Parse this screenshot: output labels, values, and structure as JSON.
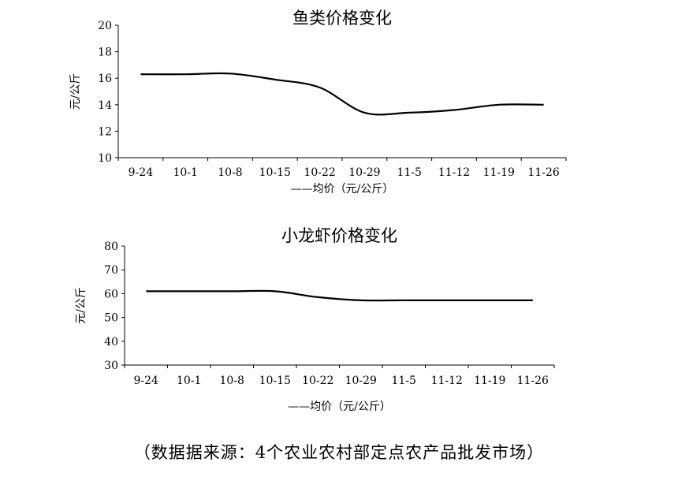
{
  "chart_data": [
    {
      "type": "line",
      "title": "鱼类价格变化",
      "ylabel": "元/公斤",
      "legend": "——均价（元/公斤）",
      "categories": [
        "9-24",
        "10-1",
        "10-8",
        "10-15",
        "10-22",
        "10-29",
        "11-5",
        "11-12",
        "11-19",
        "11-26"
      ],
      "series": [
        {
          "name": "均价（元/公斤）",
          "values": [
            16.3,
            16.3,
            16.35,
            15.9,
            15.3,
            13.4,
            13.4,
            13.6,
            14.0,
            14.0
          ]
        }
      ],
      "ylim": [
        10,
        20
      ],
      "yticks": [
        10,
        12,
        14,
        16,
        18,
        20
      ],
      "grid": false,
      "legend_placement": "bottom"
    },
    {
      "type": "line",
      "title": "小龙虾价格变化",
      "ylabel": "元/公斤",
      "legend": "——均价（元/公斤）",
      "categories": [
        "9-24",
        "10-1",
        "10-8",
        "10-15",
        "10-22",
        "10-29",
        "11-5",
        "11-12",
        "11-19",
        "11-26"
      ],
      "series": [
        {
          "name": "均价（元/公斤）",
          "values": [
            61,
            61,
            61,
            61,
            58.5,
            57.2,
            57.2,
            57.2,
            57.2,
            57.2
          ]
        }
      ],
      "ylim": [
        30,
        80
      ],
      "yticks": [
        30,
        40,
        50,
        60,
        70,
        80
      ],
      "grid": false,
      "legend_placement": "bottom"
    }
  ],
  "source_note": "（数据据来源：4个农业农村部定点农产品批发市场）"
}
